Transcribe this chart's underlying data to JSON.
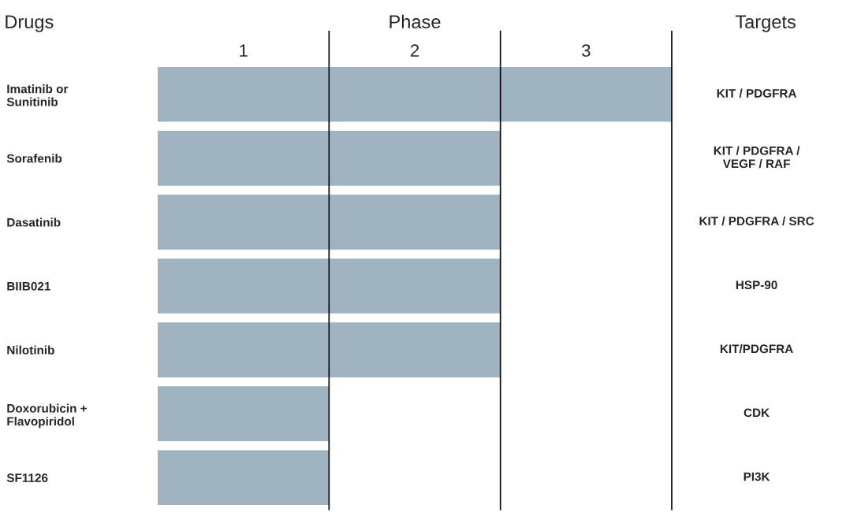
{
  "chart_data": {
    "type": "bar",
    "orientation": "horizontal",
    "xlabel": "Phase",
    "y2label": "Targets",
    "categories": [
      "Imatinib or\nSunitinib",
      "Sorafenib",
      "Dasatinib",
      "BIIB021",
      "Nilotinib",
      "Doxorubicin +\nFlavopiridol",
      "SF1126"
    ],
    "values": [
      3,
      2,
      2,
      2,
      2,
      1,
      1
    ],
    "color": "#9fb3c0",
    "xlim": [
      0,
      3
    ],
    "xticks": [
      {
        "value": 0.5,
        "label": "1"
      },
      {
        "value": 1.5,
        "label": "2"
      },
      {
        "value": 2.5,
        "label": "3"
      }
    ],
    "ref_lines": [
      {
        "axis": "x",
        "value": 1
      },
      {
        "axis": "x",
        "value": 2
      },
      {
        "axis": "x",
        "value": 3
      }
    ],
    "annotations": [
      "KIT / PDGFRA",
      "KIT / PDGFRA /\nVEGF / RAF",
      "KIT / PDGFRA / SRC",
      "HSP-90",
      "KIT/PDGFRA",
      "CDK",
      "PI3K",
      "Drugs"
    ]
  }
}
